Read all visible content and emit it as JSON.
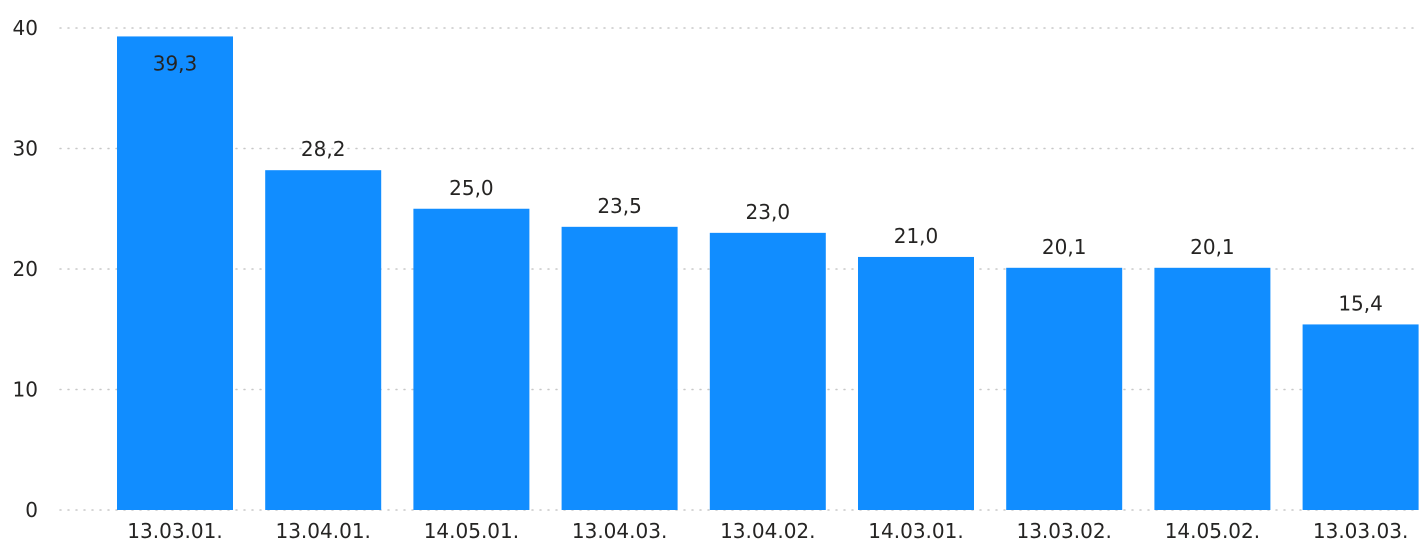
{
  "chart_data": {
    "type": "bar",
    "title": "",
    "xlabel": "",
    "ylabel": "",
    "categories": [
      "13.03.01.",
      "13.04.01.",
      "14.05.01.",
      "13.04.03.",
      "13.04.02.",
      "14.03.01.",
      "13.03.02.",
      "14.05.02.",
      "13.03.03."
    ],
    "values": [
      39.3,
      28.2,
      25.0,
      23.5,
      23.0,
      21.0,
      20.1,
      20.1,
      15.4
    ],
    "data_labels": [
      "39,3",
      "28,2",
      "25,0",
      "23,5",
      "23,0",
      "21,0",
      "20,1",
      "20,1",
      "15,4"
    ],
    "ylim": [
      0,
      40
    ],
    "yticks": [
      0,
      10,
      20,
      30,
      40
    ],
    "ytick_labels": [
      "0",
      "10",
      "20",
      "30",
      "40"
    ],
    "grid": true,
    "legend": "none",
    "bar_color": "#118DFF",
    "grid_color": "#C8C8C8",
    "text_color": "#252423"
  }
}
